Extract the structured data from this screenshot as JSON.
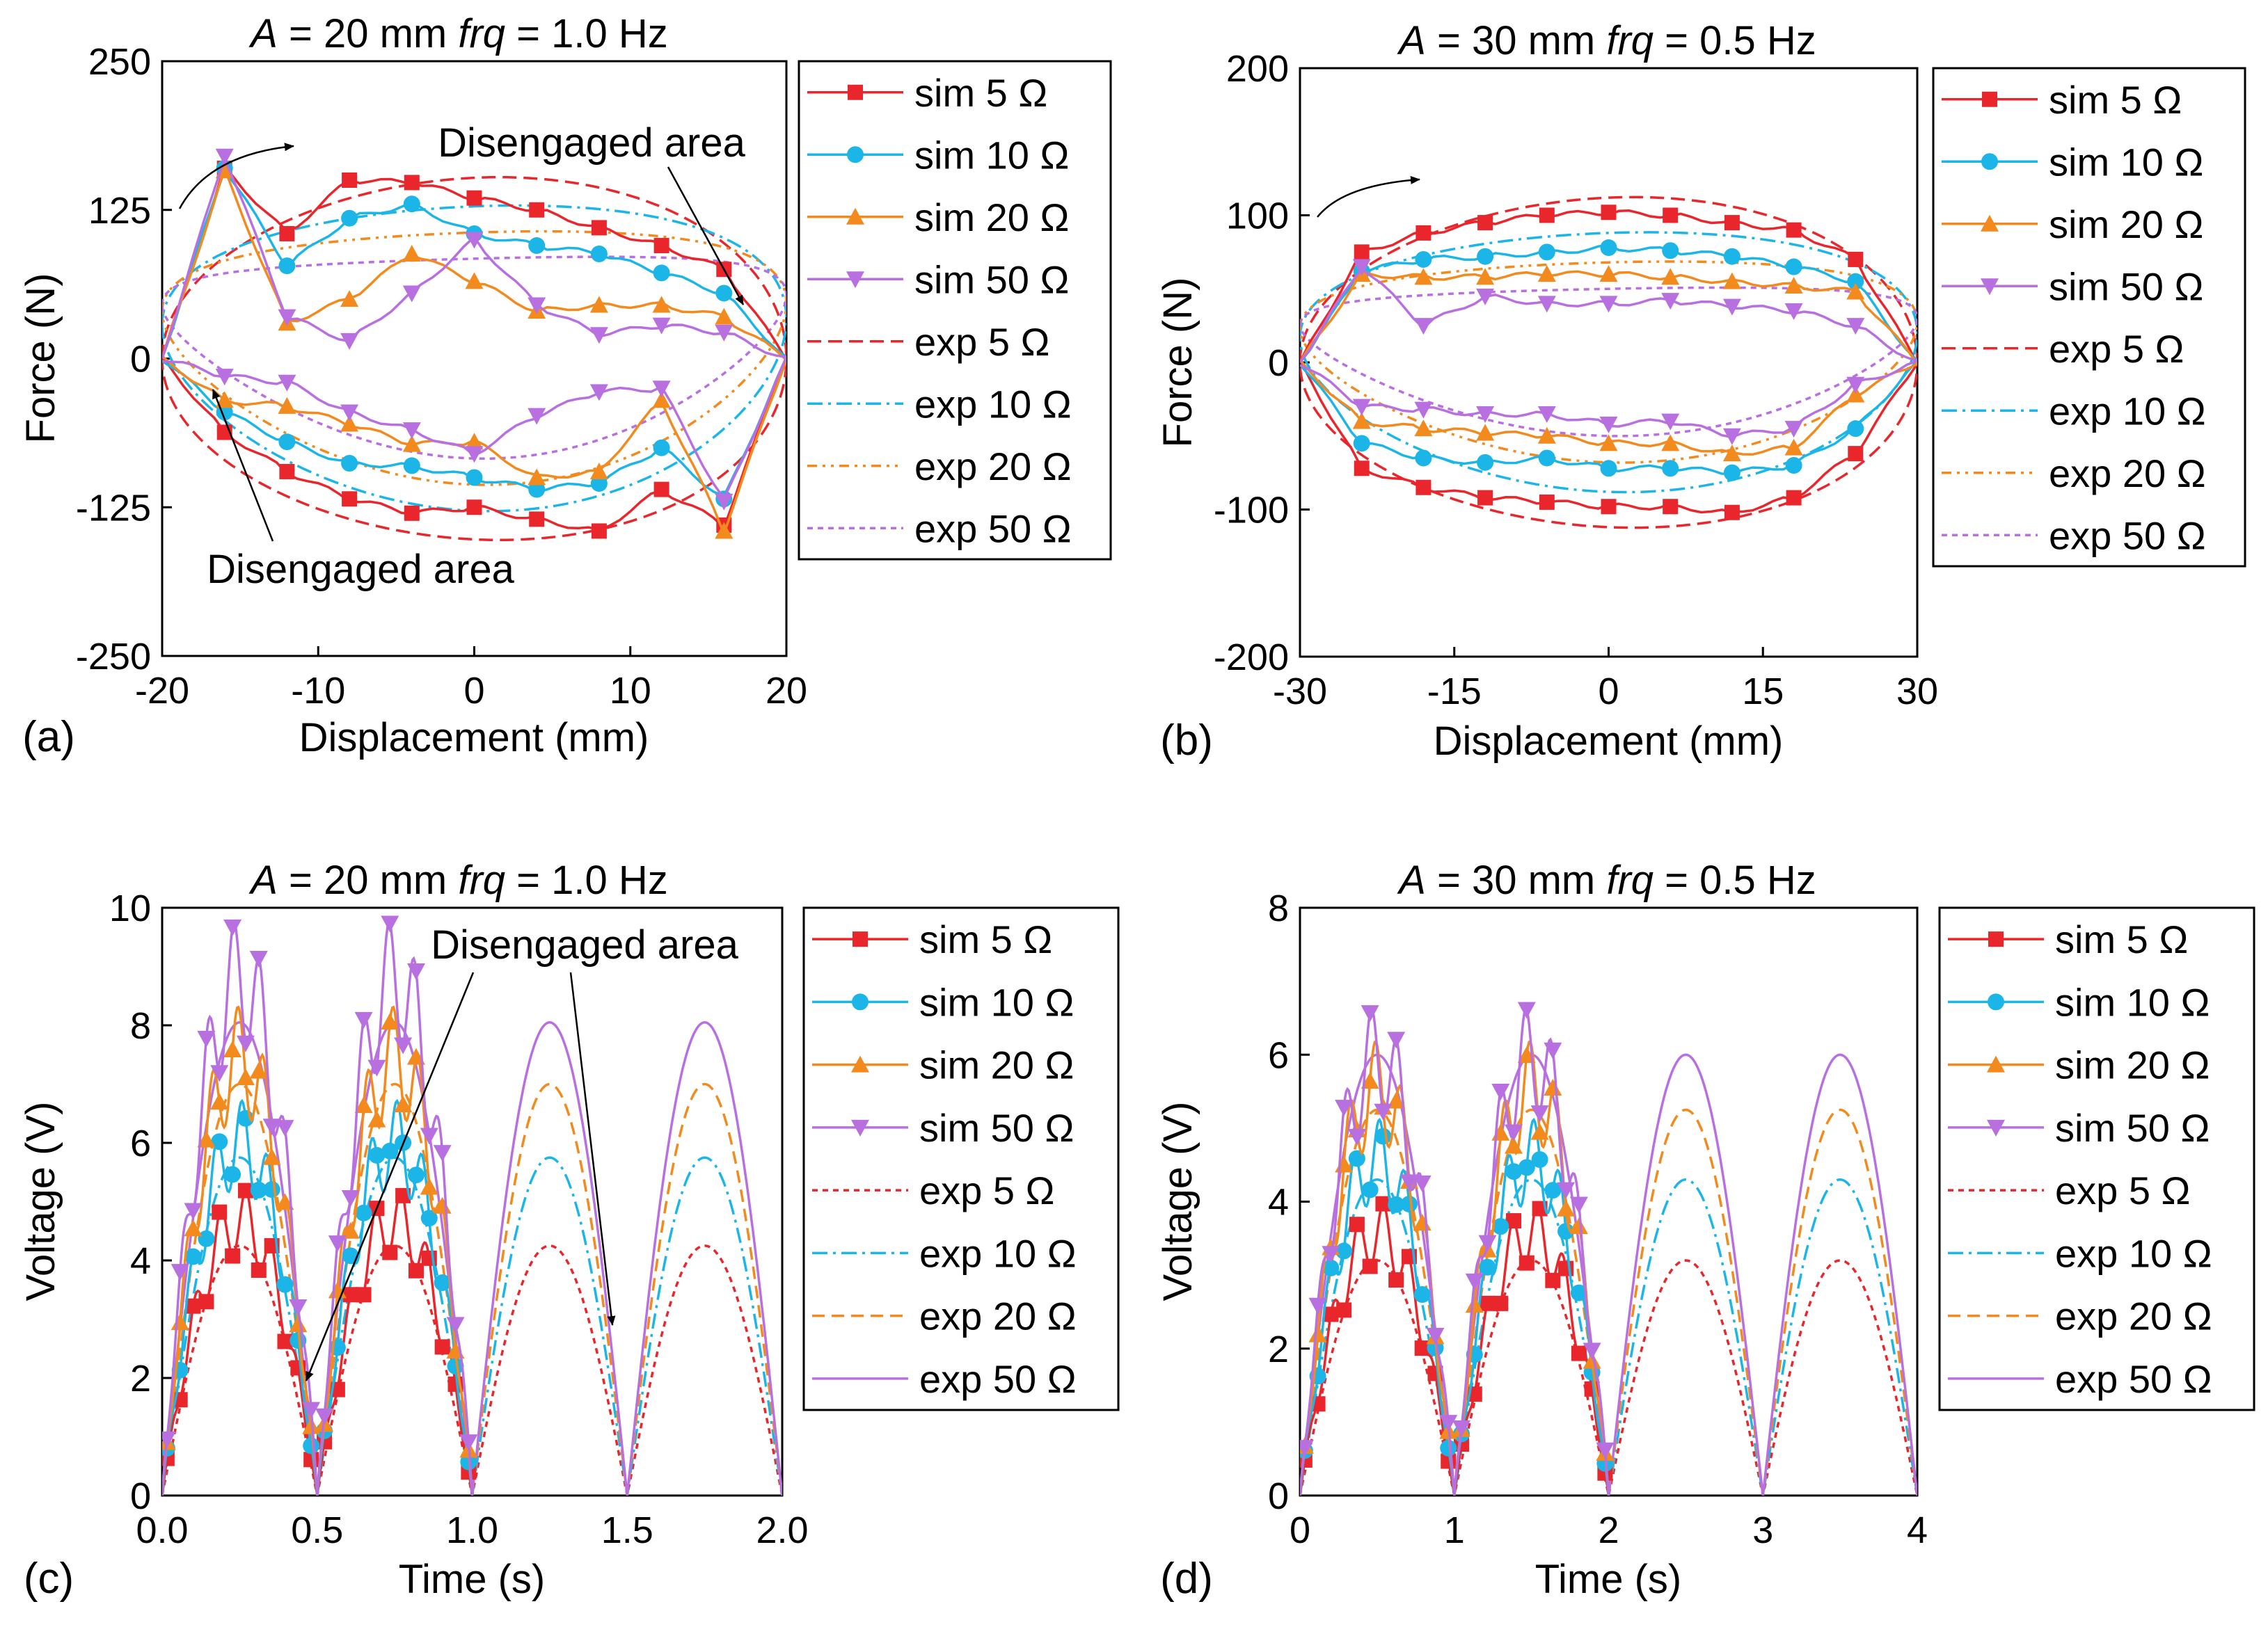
{
  "figure": {
    "panels": [
      {
        "id": "a",
        "label": "(a)",
        "title_amp": "A",
        "title_amp_val": " = 20 mm",
        "title_frq": "frq",
        "title_frq_val": " = 1.0 Hz"
      },
      {
        "id": "b",
        "label": "(b)",
        "title_amp": "A",
        "title_amp_val": " = 30 mm",
        "title_frq": "frq",
        "title_frq_val": " = 0.5 Hz"
      },
      {
        "id": "c",
        "label": "(c)",
        "title_amp": "A",
        "title_amp_val": " = 20 mm",
        "title_frq": "frq",
        "title_frq_val": " = 1.0 Hz"
      },
      {
        "id": "d",
        "label": "(d)",
        "title_amp": "A",
        "title_amp_val": " = 30 mm",
        "title_frq": "frq",
        "title_frq_val": " = 0.5 Hz"
      }
    ],
    "annotation_text": "Disengaged area"
  },
  "colors": {
    "r5": "#e8262b",
    "r10": "#1cb5e8",
    "r20": "#f28a1e",
    "r50": "#b86fe0"
  },
  "chart_data": [
    {
      "type": "line",
      "title": "A = 20 mm  frq = 1.0 Hz",
      "xlabel": "Displacement (mm)",
      "ylabel": "Force (N)",
      "xlim": [
        -20,
        20
      ],
      "ylim": [
        -250,
        250
      ],
      "xticks": [
        -20,
        -10,
        0,
        10,
        20
      ],
      "yticks": [
        -250,
        -125,
        0,
        125,
        250
      ],
      "legend": [
        "sim 5 Ω",
        "sim 10 Ω",
        "sim 20 Ω",
        "sim 50 Ω",
        "exp 5 Ω",
        "exp 10 Ω",
        "exp 20 Ω",
        "exp 50 Ω"
      ],
      "series": [
        {
          "name": "exp 5 Ω",
          "amplitude": 152,
          "phase_deg": 0
        },
        {
          "name": "exp 10 Ω",
          "amplitude": 128,
          "phase_deg": 14
        },
        {
          "name": "exp 20 Ω",
          "amplitude": 106,
          "phase_deg": 24
        },
        {
          "name": "exp 50 Ω",
          "amplitude": 84,
          "phase_deg": 36
        },
        {
          "name": "sim 5 Ω",
          "x": [
            -20,
            -16,
            -12,
            -8,
            -4,
            0,
            4,
            8,
            12,
            16,
            20,
            16,
            12,
            8,
            4,
            0,
            -4,
            -8,
            -12,
            -16,
            -20
          ],
          "y": [
            0,
            160,
            105,
            150,
            148,
            135,
            125,
            110,
            95,
            75,
            0,
            -140,
            -110,
            -145,
            -135,
            -125,
            -130,
            -118,
            -95,
            -62,
            0
          ]
        },
        {
          "name": "sim 10 Ω",
          "x": [
            -20,
            -16,
            -12,
            -8,
            -4,
            0,
            4,
            8,
            12,
            16,
            20,
            16,
            12,
            8,
            4,
            0,
            -4,
            -8,
            -12,
            -16,
            -20
          ],
          "y": [
            0,
            160,
            78,
            118,
            130,
            105,
            95,
            88,
            72,
            55,
            0,
            -118,
            -75,
            -105,
            -110,
            -100,
            -90,
            -88,
            -70,
            -45,
            0
          ]
        },
        {
          "name": "sim 20 Ω",
          "x": [
            -20,
            -16,
            -12,
            -8,
            -4,
            0,
            4,
            8,
            12,
            16,
            20,
            16,
            12,
            8,
            4,
            0,
            -4,
            -8,
            -12,
            -16,
            -20
          ],
          "y": [
            0,
            158,
            30,
            50,
            88,
            65,
            40,
            45,
            45,
            35,
            0,
            -145,
            -35,
            -95,
            -100,
            -70,
            -72,
            -55,
            -40,
            -35,
            0
          ]
        },
        {
          "name": "sim 50 Ω",
          "x": [
            -20,
            -16,
            -12,
            -8,
            -4,
            0,
            4,
            8,
            12,
            16,
            20,
            16,
            12,
            8,
            4,
            0,
            -4,
            -8,
            -12,
            -16,
            -20
          ],
          "y": [
            0,
            170,
            35,
            15,
            55,
            100,
            45,
            20,
            28,
            22,
            0,
            -120,
            -25,
            -28,
            -48,
            -80,
            -60,
            -45,
            -20,
            -15,
            0
          ]
        }
      ],
      "annotations": [
        "Disengaged area",
        "Disengaged area"
      ]
    },
    {
      "type": "line",
      "title": "A = 30 mm  frq = 0.5 Hz",
      "xlabel": "Displacement (mm)",
      "ylabel": "Force (N)",
      "xlim": [
        -30,
        30
      ],
      "ylim": [
        -200,
        200
      ],
      "xticks": [
        -30,
        -15,
        0,
        15,
        30
      ],
      "yticks": [
        -200,
        -100,
        0,
        100,
        200
      ],
      "legend": [
        "sim 5 Ω",
        "sim 10 Ω",
        "sim 20 Ω",
        "sim 50 Ω",
        "exp 5 Ω",
        "exp 10 Ω",
        "exp 20 Ω",
        "exp 50 Ω"
      ],
      "series": [
        {
          "name": "exp 5 Ω",
          "amplitude": 112,
          "phase_deg": 0
        },
        {
          "name": "exp 10 Ω",
          "amplitude": 88,
          "phase_deg": 12
        },
        {
          "name": "exp 20 Ω",
          "amplitude": 68,
          "phase_deg": 22
        },
        {
          "name": "exp 50 Ω",
          "amplitude": 50,
          "phase_deg": 34
        },
        {
          "name": "sim 5 Ω",
          "x": [
            -30,
            -24,
            -18,
            -12,
            -6,
            0,
            6,
            12,
            18,
            24,
            30,
            24,
            18,
            12,
            6,
            0,
            -6,
            -12,
            -18,
            -24,
            -30
          ],
          "y": [
            0,
            75,
            88,
            95,
            100,
            102,
            100,
            95,
            90,
            70,
            0,
            -62,
            -92,
            -102,
            -98,
            -98,
            -95,
            -92,
            -85,
            -72,
            0
          ]
        },
        {
          "name": "sim 10 Ω",
          "x": [
            -30,
            -24,
            -18,
            -12,
            -6,
            0,
            6,
            12,
            18,
            24,
            30,
            24,
            18,
            12,
            6,
            0,
            -6,
            -12,
            -18,
            -24,
            -30
          ],
          "y": [
            0,
            62,
            70,
            72,
            75,
            78,
            76,
            72,
            65,
            55,
            0,
            -45,
            -70,
            -75,
            -72,
            -72,
            -65,
            -68,
            -65,
            -55,
            0
          ]
        },
        {
          "name": "sim 20 Ω",
          "x": [
            -30,
            -24,
            -18,
            -12,
            -6,
            0,
            6,
            12,
            18,
            24,
            30,
            24,
            18,
            12,
            6,
            0,
            -6,
            -12,
            -18,
            -24,
            -30
          ],
          "y": [
            0,
            60,
            58,
            58,
            60,
            60,
            58,
            55,
            52,
            48,
            0,
            -22,
            -58,
            -62,
            -55,
            -55,
            -50,
            -48,
            -45,
            -40,
            0
          ]
        },
        {
          "name": "sim 50 Ω",
          "x": [
            -30,
            -24,
            -18,
            -12,
            -6,
            0,
            6,
            12,
            18,
            24,
            30,
            24,
            18,
            12,
            6,
            0,
            -6,
            -12,
            -18,
            -24,
            -30
          ],
          "y": [
            0,
            65,
            25,
            45,
            40,
            40,
            42,
            38,
            35,
            25,
            0,
            -15,
            -45,
            -50,
            -40,
            -42,
            -35,
            -35,
            -32,
            -30,
            0
          ]
        }
      ],
      "annotations": []
    },
    {
      "type": "line",
      "title": "A = 20 mm  frq = 1.0 Hz",
      "xlabel": "Time (s)",
      "ylabel": "Voltage (V)",
      "xlim": [
        0,
        2
      ],
      "ylim": [
        0,
        10
      ],
      "xticks": [
        0.0,
        0.5,
        1.0,
        1.5,
        2.0
      ],
      "yticks": [
        0,
        2,
        4,
        6,
        8,
        10
      ],
      "legend": [
        "sim 5 Ω",
        "sim 10 Ω",
        "sim 20 Ω",
        "sim 50 Ω",
        "exp 5 Ω",
        "exp 10 Ω",
        "exp 20 Ω",
        "exp 50 Ω"
      ],
      "series": [
        {
          "name": "sim 5 Ω",
          "peak": 4.9
        },
        {
          "name": "sim 10 Ω",
          "peak": 6.3
        },
        {
          "name": "sim 20 Ω",
          "peak": 7.8
        },
        {
          "name": "sim 50 Ω",
          "peak": 9.2
        },
        {
          "name": "exp 5 Ω",
          "peak": 4.25
        },
        {
          "name": "exp 10 Ω",
          "peak": 5.75
        },
        {
          "name": "exp 20 Ω",
          "peak": 7.0
        },
        {
          "name": "exp 50 Ω",
          "peak": 8.05
        }
      ],
      "period": 0.5,
      "phase": 0.0,
      "annotations": [
        "Disengaged area"
      ]
    },
    {
      "type": "line",
      "title": "A = 30 mm  frq = 0.5 Hz",
      "xlabel": "Time (s)",
      "ylabel": "Voltage (V)",
      "xlim": [
        0,
        4
      ],
      "ylim": [
        0,
        8
      ],
      "xticks": [
        0,
        1,
        2,
        3,
        4
      ],
      "yticks": [
        0,
        2,
        4,
        6,
        8
      ],
      "legend": [
        "sim 5 Ω",
        "sim 10 Ω",
        "sim 20 Ω",
        "sim 50 Ω",
        "exp 5 Ω",
        "exp 10 Ω",
        "exp 20 Ω",
        "exp 50 Ω"
      ],
      "series": [
        {
          "name": "sim 5 Ω",
          "peak": 3.75
        },
        {
          "name": "sim 10 Ω",
          "peak": 4.8
        },
        {
          "name": "sim 20 Ω",
          "peak": 5.8
        },
        {
          "name": "sim 50 Ω",
          "peak": 6.25
        },
        {
          "name": "exp 5 Ω",
          "peak": 3.2
        },
        {
          "name": "exp 10 Ω",
          "peak": 4.3
        },
        {
          "name": "exp 20 Ω",
          "peak": 5.25
        },
        {
          "name": "exp 50 Ω",
          "peak": 6.0
        }
      ],
      "period": 1.0,
      "phase": 0.0,
      "annotations": []
    }
  ]
}
